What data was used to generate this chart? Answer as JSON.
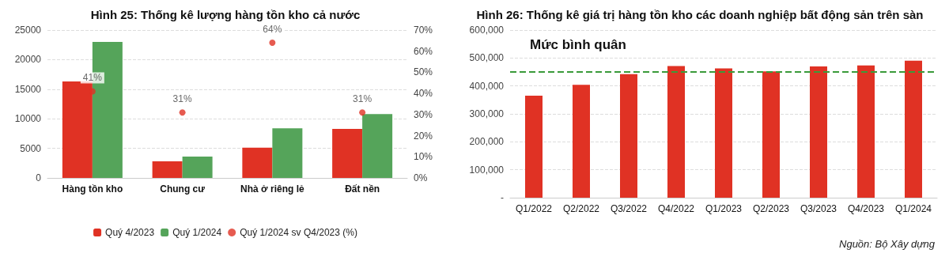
{
  "chart_data": [
    {
      "type": "bar",
      "title": "Hình 25: Thống kê lượng hàng tồn kho cả nước",
      "categories": [
        "Hàng tồn kho",
        "Chung cư",
        "Nhà ở riêng lẻ",
        "Đất nền"
      ],
      "series": [
        {
          "name": "Quý 4/2023",
          "color": "#e03224",
          "values": [
            16300,
            2800,
            5100,
            8300
          ]
        },
        {
          "name": "Quý 1/2024",
          "color": "#55a45a",
          "values": [
            23000,
            3600,
            8400,
            10800
          ]
        },
        {
          "name": "Quý 1/2024 sv Q4/2023 (%)",
          "type": "scatter",
          "axis": "y2",
          "color": "#e03224",
          "x": [
            "Hàng tồn kho",
            "Chung cư",
            "Nhà ở riêng lẻ",
            "Đất nền"
          ],
          "values": [
            41,
            31,
            64,
            31
          ],
          "value_labels": [
            "41%",
            "31%",
            "64%",
            "31%"
          ]
        }
      ],
      "ylim": [
        0,
        25000
      ],
      "yticks": [
        0,
        5000,
        10000,
        15000,
        20000,
        25000
      ],
      "y2lim": [
        0,
        70
      ],
      "y2ticks": [
        {
          "value": 0,
          "label": "0%"
        },
        {
          "value": 10,
          "label": "10%"
        },
        {
          "value": 20,
          "label": "20%"
        },
        {
          "value": 30,
          "label": "30%"
        },
        {
          "value": 40,
          "label": "40%"
        },
        {
          "value": 50,
          "label": "50%"
        },
        {
          "value": 60,
          "label": "60%"
        },
        {
          "value": 70,
          "label": "70%"
        }
      ],
      "grid": "y",
      "legend": "bottom",
      "marker": "circle"
    },
    {
      "type": "bar",
      "title": "Hình 26: Thống kê giá trị hàng tồn kho các doanh nghiệp bất động sản trên sàn",
      "categories": [
        "Q1/2022",
        "Q2/2022",
        "Q3/2022",
        "Q4/2022",
        "Q1/2023",
        "Q2/2023",
        "Q3/2023",
        "Q4/2023",
        "Q1/2024"
      ],
      "series": [
        {
          "color": "#e03224",
          "values": [
            365000,
            404000,
            442000,
            471000,
            463000,
            452000,
            470000,
            473000,
            490000
          ]
        }
      ],
      "ylim": [
        0,
        600000
      ],
      "yticks": [
        {
          "value": 0,
          "label": "-"
        },
        {
          "value": 100000,
          "label": "100,000"
        },
        {
          "value": 200000,
          "label": "200,000"
        },
        {
          "value": 300000,
          "label": "300,000"
        },
        {
          "value": 400000,
          "label": "400,000"
        },
        {
          "value": 500000,
          "label": "500,000"
        },
        {
          "value": 600000,
          "label": "600,000"
        }
      ],
      "ref_lines": [
        {
          "axis": "y",
          "value": 450000,
          "label": "Mức bình quân",
          "color": "#3a9a3a",
          "line_style": "dashed"
        }
      ],
      "annotations": [
        "Nguồn: Bộ Xây dựng"
      ],
      "grid": "y",
      "legend": false
    }
  ]
}
